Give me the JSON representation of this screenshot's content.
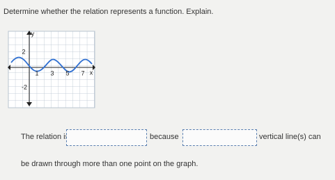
{
  "question": "Determine whether the relation represents a function. Explain.",
  "graph": {
    "y_axis_label": "y",
    "x_axis_label": "x",
    "y_labels": [
      "2",
      "-2"
    ],
    "x_labels": [
      "1",
      "3",
      "5",
      "7"
    ]
  },
  "answer": {
    "part1": "The relation is",
    "part2": "because",
    "part3": "vertical line(s) can",
    "part4": "be drawn through more than one point on the graph."
  }
}
